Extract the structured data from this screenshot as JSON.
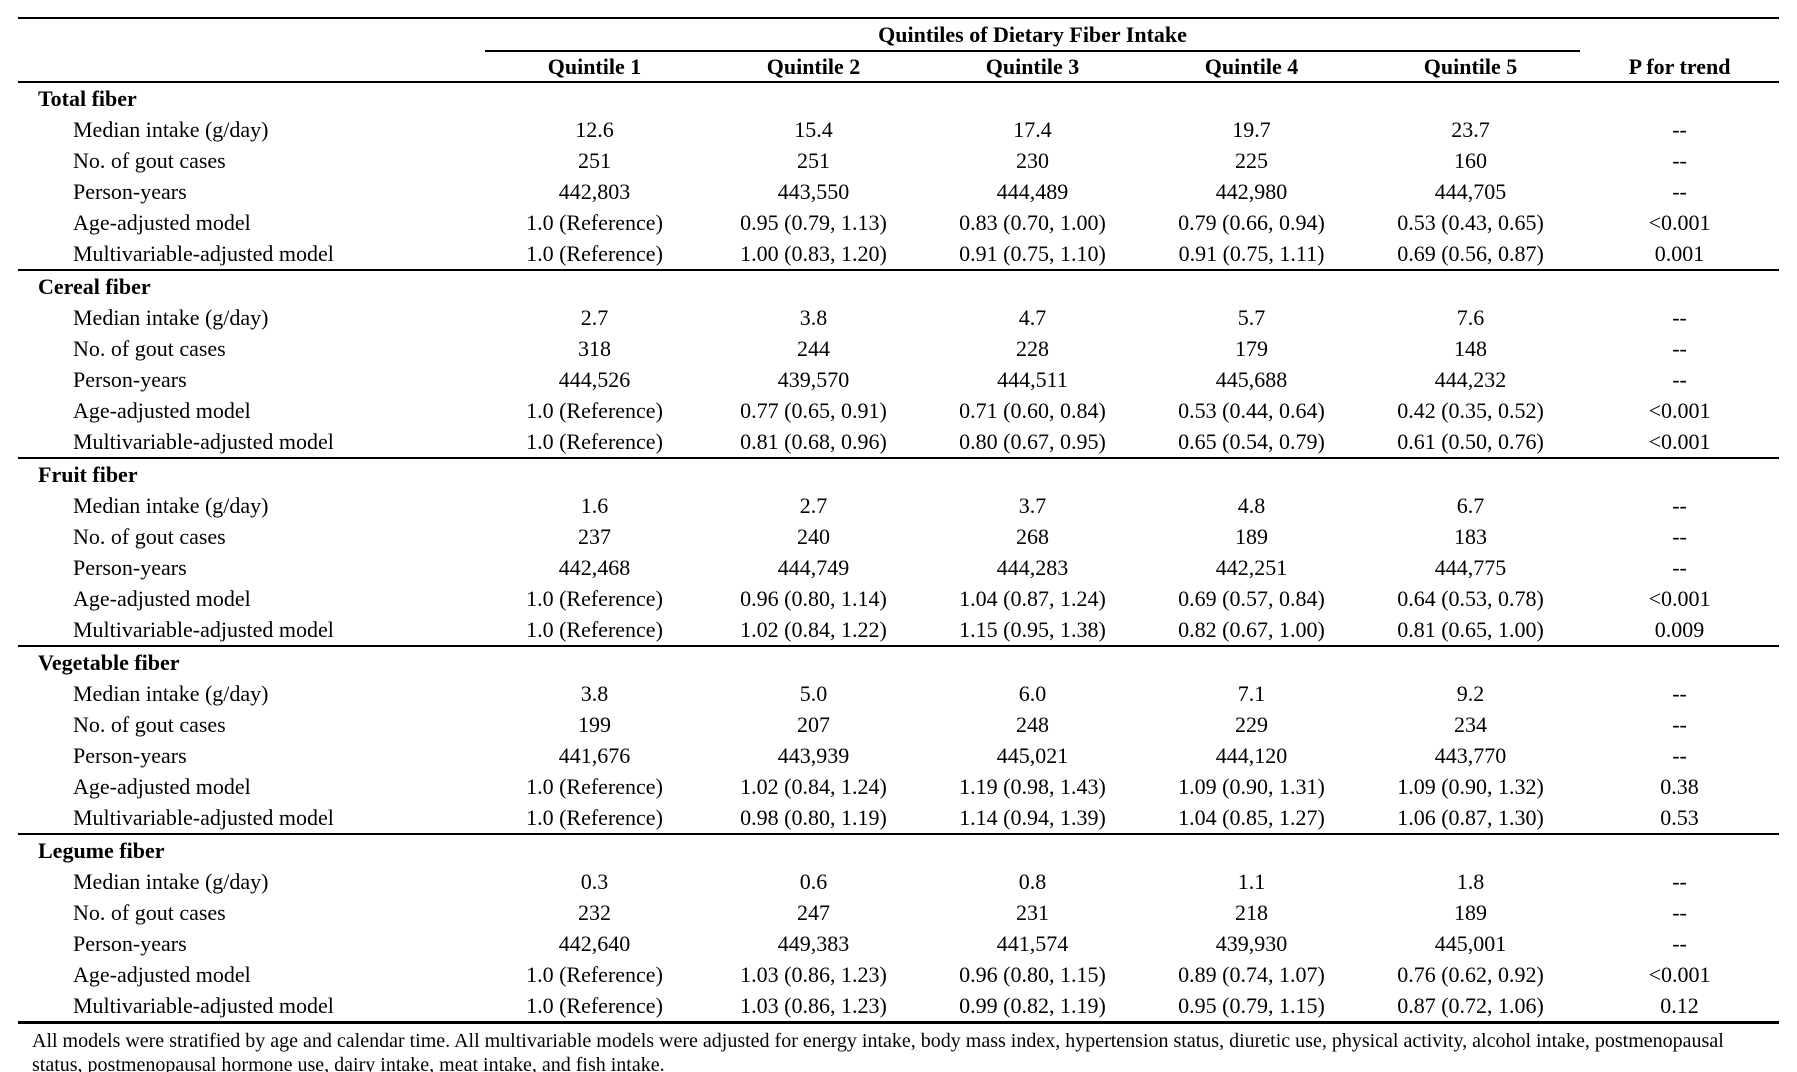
{
  "table": {
    "spanner_title": "Quintiles of Dietary Fiber Intake",
    "p_trend_header": "P for trend",
    "col_headers": [
      "Quintile 1",
      "Quintile 2",
      "Quintile 3",
      "Quintile 4",
      "Quintile 5"
    ],
    "sections": [
      {
        "name": "Total fiber",
        "rows": [
          {
            "label": "Median intake (g/day)",
            "values": [
              "12.6",
              "15.4",
              "17.4",
              "19.7",
              "23.7",
              "--"
            ]
          },
          {
            "label": "No. of gout cases",
            "values": [
              "251",
              "251",
              "230",
              "225",
              "160",
              "--"
            ]
          },
          {
            "label": "Person-years",
            "values": [
              "442,803",
              "443,550",
              "444,489",
              "442,980",
              "444,705",
              "--"
            ]
          },
          {
            "label": "Age-adjusted model",
            "values": [
              "1.0 (Reference)",
              "0.95 (0.79, 1.13)",
              "0.83 (0.70, 1.00)",
              "0.79 (0.66, 0.94)",
              "0.53 (0.43, 0.65)",
              "<0.001"
            ]
          },
          {
            "label": "Multivariable-adjusted model",
            "values": [
              "1.0 (Reference)",
              "1.00 (0.83, 1.20)",
              "0.91 (0.75, 1.10)",
              "0.91 (0.75, 1.11)",
              "0.69 (0.56, 0.87)",
              "0.001"
            ]
          }
        ]
      },
      {
        "name": "Cereal fiber",
        "rows": [
          {
            "label": "Median intake (g/day)",
            "values": [
              "2.7",
              "3.8",
              "4.7",
              "5.7",
              "7.6",
              "--"
            ]
          },
          {
            "label": "No. of gout cases",
            "values": [
              "318",
              "244",
              "228",
              "179",
              "148",
              "--"
            ]
          },
          {
            "label": "Person-years",
            "values": [
              "444,526",
              "439,570",
              "444,511",
              "445,688",
              "444,232",
              "--"
            ]
          },
          {
            "label": "Age-adjusted model",
            "values": [
              "1.0 (Reference)",
              "0.77 (0.65, 0.91)",
              "0.71 (0.60, 0.84)",
              "0.53 (0.44, 0.64)",
              "0.42 (0.35, 0.52)",
              "<0.001"
            ]
          },
          {
            "label": "Multivariable-adjusted model",
            "values": [
              "1.0 (Reference)",
              "0.81 (0.68, 0.96)",
              "0.80 (0.67, 0.95)",
              "0.65 (0.54, 0.79)",
              "0.61 (0.50, 0.76)",
              "<0.001"
            ]
          }
        ]
      },
      {
        "name": "Fruit fiber",
        "rows": [
          {
            "label": "Median intake (g/day)",
            "values": [
              "1.6",
              "2.7",
              "3.7",
              "4.8",
              "6.7",
              "--"
            ]
          },
          {
            "label": "No. of gout cases",
            "values": [
              "237",
              "240",
              "268",
              "189",
              "183",
              "--"
            ]
          },
          {
            "label": "Person-years",
            "values": [
              "442,468",
              "444,749",
              "444,283",
              "442,251",
              "444,775",
              "--"
            ]
          },
          {
            "label": "Age-adjusted model",
            "values": [
              "1.0 (Reference)",
              "0.96 (0.80, 1.14)",
              "1.04 (0.87, 1.24)",
              "0.69 (0.57, 0.84)",
              "0.64 (0.53, 0.78)",
              "<0.001"
            ]
          },
          {
            "label": "Multivariable-adjusted model",
            "values": [
              "1.0 (Reference)",
              "1.02 (0.84, 1.22)",
              "1.15 (0.95, 1.38)",
              "0.82 (0.67, 1.00)",
              "0.81 (0.65, 1.00)",
              "0.009"
            ]
          }
        ]
      },
      {
        "name": "Vegetable fiber",
        "rows": [
          {
            "label": "Median intake (g/day)",
            "values": [
              "3.8",
              "5.0",
              "6.0",
              "7.1",
              "9.2",
              "--"
            ]
          },
          {
            "label": "No. of gout cases",
            "values": [
              "199",
              "207",
              "248",
              "229",
              "234",
              "--"
            ]
          },
          {
            "label": "Person-years",
            "values": [
              "441,676",
              "443,939",
              "445,021",
              "444,120",
              "443,770",
              "--"
            ]
          },
          {
            "label": "Age-adjusted model",
            "values": [
              "1.0 (Reference)",
              "1.02 (0.84, 1.24)",
              "1.19 (0.98, 1.43)",
              "1.09 (0.90, 1.31)",
              "1.09 (0.90, 1.32)",
              "0.38"
            ]
          },
          {
            "label": "Multivariable-adjusted model",
            "values": [
              "1.0 (Reference)",
              "0.98 (0.80, 1.19)",
              "1.14 (0.94, 1.39)",
              "1.04 (0.85, 1.27)",
              "1.06 (0.87, 1.30)",
              "0.53"
            ]
          }
        ]
      },
      {
        "name": "Legume fiber",
        "rows": [
          {
            "label": "Median intake (g/day)",
            "values": [
              "0.3",
              "0.6",
              "0.8",
              "1.1",
              "1.8",
              "--"
            ]
          },
          {
            "label": "No. of gout cases",
            "values": [
              "232",
              "247",
              "231",
              "218",
              "189",
              "--"
            ]
          },
          {
            "label": "Person-years",
            "values": [
              "442,640",
              "449,383",
              "441,574",
              "439,930",
              "445,001",
              "--"
            ]
          },
          {
            "label": "Age-adjusted model",
            "values": [
              "1.0 (Reference)",
              "1.03 (0.86, 1.23)",
              "0.96 (0.80, 1.15)",
              "0.89 (0.74, 1.07)",
              "0.76 (0.62, 0.92)",
              "<0.001"
            ]
          },
          {
            "label": "Multivariable-adjusted model",
            "values": [
              "1.0 (Reference)",
              "1.03 (0.86, 1.23)",
              "0.99 (0.82, 1.19)",
              "0.95 (0.79, 1.15)",
              "0.87 (0.72, 1.06)",
              "0.12"
            ]
          }
        ]
      }
    ],
    "footnote": "All models were stratified by age and calendar time. All multivariable models were adjusted for energy intake, body mass index, hypertension status, diuretic use, physical activity, alcohol intake, postmenopausal status, postmenopausal hormone use, dairy intake, meat intake, and fish intake."
  }
}
